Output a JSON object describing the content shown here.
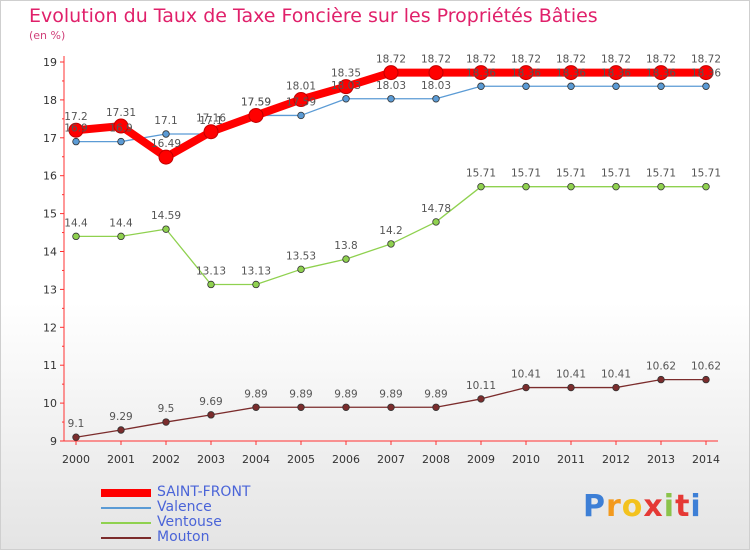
{
  "chart_data": {
    "type": "line",
    "title": "Evolution du Taux de Taxe Foncière sur les Propriétés Bâties",
    "subtitle": "(en %)",
    "x": [
      "2000",
      "2001",
      "2002",
      "2003",
      "2004",
      "2005",
      "2006",
      "2007",
      "2008",
      "2009",
      "2010",
      "2011",
      "2012",
      "2013",
      "2014"
    ],
    "ylim": [
      9,
      19
    ],
    "yticks": [
      "9",
      "10",
      "11",
      "12",
      "13",
      "14",
      "15",
      "16",
      "17",
      "18",
      "19"
    ],
    "grid": false,
    "legend_position": "bottom-left",
    "series": [
      {
        "name": "SAINT-FRONT",
        "color": "#ff0000",
        "values": [
          17.2,
          17.31,
          16.49,
          17.16,
          17.59,
          18.01,
          18.35,
          18.72,
          18.72,
          18.72,
          18.72,
          18.72,
          18.72,
          18.72,
          18.72
        ],
        "labels": [
          "17.2",
          "17.31",
          "16.49",
          "17.16",
          "17.59",
          "18.01",
          "18.35",
          "18.72",
          "18.72",
          "18.72",
          "18.72",
          "18.72",
          "18.72",
          "18.72",
          "18.72"
        ]
      },
      {
        "name": "Valence",
        "color": "#5b9bd5",
        "values": [
          16.9,
          16.9,
          17.1,
          17.1,
          17.59,
          17.59,
          18.03,
          18.03,
          18.03,
          18.36,
          18.36,
          18.36,
          18.36,
          18.36,
          18.36
        ],
        "labels": [
          "16.9",
          "16.9",
          "17.1",
          "17.1",
          "17.59",
          "17.59",
          "18.03",
          "18.03",
          "18.03",
          "18.36",
          "18.36",
          "18.36",
          "18.36",
          "18.36",
          "18.36"
        ]
      },
      {
        "name": "Ventouse",
        "color": "#8fd14f",
        "values": [
          14.4,
          14.4,
          14.59,
          13.13,
          13.13,
          13.53,
          13.8,
          14.2,
          14.78,
          15.71,
          15.71,
          15.71,
          15.71,
          15.71,
          15.71
        ],
        "labels": [
          "14.4",
          "14.4",
          "14.59",
          "13.13",
          "13.13",
          "13.53",
          "13.8",
          "14.2",
          "14.78",
          "15.71",
          "15.71",
          "15.71",
          "15.71",
          "15.71",
          "15.71"
        ]
      },
      {
        "name": "Mouton",
        "color": "#7b2c2c",
        "values": [
          9.1,
          9.29,
          9.5,
          9.69,
          9.89,
          9.89,
          9.89,
          9.89,
          9.89,
          10.11,
          10.41,
          10.41,
          10.41,
          10.62,
          10.62
        ],
        "labels": [
          "9.1",
          "9.29",
          "9.5",
          "9.69",
          "9.89",
          "9.89",
          "9.89",
          "9.89",
          "9.89",
          "10.11",
          "10.41",
          "10.41",
          "10.41",
          "10.62",
          "10.62"
        ]
      }
    ]
  },
  "legend": {
    "items": [
      {
        "label": "SAINT-FRONT",
        "color": "#ff0000",
        "text_color": "#4a64d8"
      },
      {
        "label": "Valence",
        "color": "#5b9bd5",
        "text_color": "#4a64d8"
      },
      {
        "label": "Ventouse",
        "color": "#8fd14f",
        "text_color": "#4a64d8"
      },
      {
        "label": "Mouton",
        "color": "#7b2c2c",
        "text_color": "#4a64d8"
      }
    ]
  },
  "logo": {
    "letters": [
      "P",
      "r",
      "o",
      "x",
      "i",
      "t",
      "i"
    ],
    "colors": [
      "#3d7fd6",
      "#f39a1e",
      "#f3c21e",
      "#e53935",
      "#8bc34a",
      "#e53935",
      "#3d7fd6"
    ]
  }
}
